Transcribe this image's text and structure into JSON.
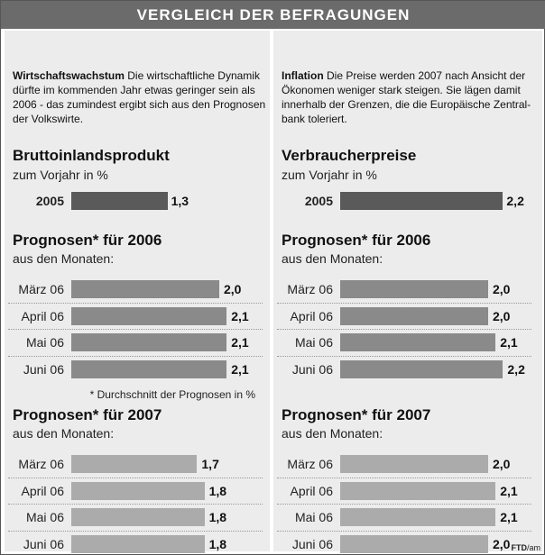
{
  "header": {
    "title": "VERGLEICH DER BEFRAGUNGEN"
  },
  "credit": {
    "bold": "FTD",
    "rest": "/am"
  },
  "colors": {
    "base_bar": "#5a5a5a",
    "forecast_2006_bar": "#8a8a8a",
    "forecast_2007_bar": "#ababab",
    "header_bg": "#6b6b6b",
    "panel_bg": "#ececec"
  },
  "chart_data": [
    {
      "type": "bar",
      "orientation": "horizontal",
      "intro_bold": "Wirtschaftswachstum",
      "intro_text": " Die wirtschaftliche Dynamik dürfte im kommenden Jahr etwas geringer sein als 2006 - das zumindest ergibt sich aus den Prognosen der Volkswirte.",
      "title": "Bruttoinlandsprodukt",
      "subtitle": "zum Vorjahr in %",
      "base": {
        "label": "2005",
        "value": 1.3,
        "display": "1,3"
      },
      "groups": [
        {
          "title": "Prognosen* für 2006",
          "subtitle": "aus den Monaten:",
          "categories": [
            "März 06",
            "April 06",
            "Mai 06",
            "Juni 06"
          ],
          "values": [
            2.0,
            2.1,
            2.1,
            2.1
          ],
          "display": [
            "2,0",
            "2,1",
            "2,1",
            "2,1"
          ]
        },
        {
          "title": "Prognosen* für 2007",
          "subtitle": "aus den Monaten:",
          "categories": [
            "März 06",
            "April 06",
            "Mai 06",
            "Juni 06"
          ],
          "values": [
            1.7,
            1.8,
            1.8,
            1.8
          ],
          "display": [
            "1,7",
            "1,8",
            "1,8",
            "1,8"
          ]
        }
      ],
      "footnote": "* Durchschnitt der Prognosen in %"
    },
    {
      "type": "bar",
      "orientation": "horizontal",
      "intro_bold": "Inflation",
      "intro_text": " Die Preise werden 2007 nach Ansicht der Ökonomen weniger stark steigen. Sie lägen damit innerhalb der Grenzen, die die Europäische Zentral-bank toleriert.",
      "title": "Verbraucherpreise",
      "subtitle": "zum Vorjahr in %",
      "base": {
        "label": "2005",
        "value": 2.2,
        "display": "2,2"
      },
      "groups": [
        {
          "title": "Prognosen* für 2006",
          "subtitle": "aus den Monaten:",
          "categories": [
            "März 06",
            "April 06",
            "Mai 06",
            "Juni 06"
          ],
          "values": [
            2.0,
            2.0,
            2.1,
            2.2
          ],
          "display": [
            "2,0",
            "2,0",
            "2,1",
            "2,2"
          ]
        },
        {
          "title": "Prognosen* für 2007",
          "subtitle": "aus den Monaten:",
          "categories": [
            "März 06",
            "April 06",
            "Mai 06",
            "Juni 06"
          ],
          "values": [
            2.0,
            2.1,
            2.1,
            2.0
          ],
          "display": [
            "2,0",
            "2,1",
            "2,1",
            "2,0"
          ]
        }
      ]
    }
  ]
}
